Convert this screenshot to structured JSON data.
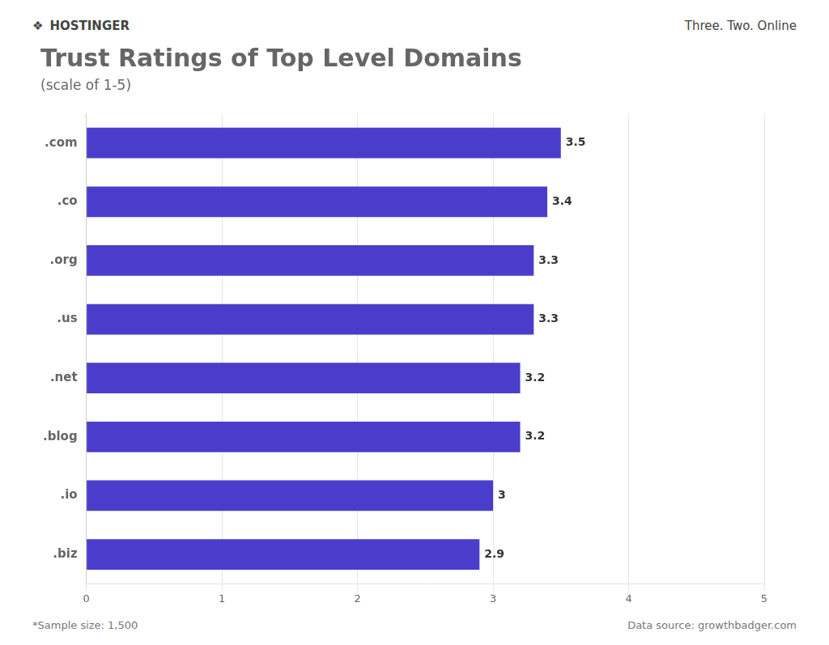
{
  "chart_data": {
    "type": "bar",
    "orientation": "horizontal",
    "title": "Trust Ratings of Top Level Domains",
    "subtitle": "(scale of 1-5)",
    "categories": [
      ".biz",
      ".io",
      ".blog",
      ".net",
      ".us",
      ".org",
      ".co",
      ".com"
    ],
    "values": [
      2.9,
      3.0,
      3.2,
      3.2,
      3.3,
      3.3,
      3.4,
      3.5
    ],
    "color": "#4b3dcc",
    "xlim": [
      0,
      5
    ],
    "xticks": [
      0,
      1,
      2,
      3,
      4,
      5
    ],
    "grid": true,
    "data_labels": true,
    "annotations": [
      "❖",
      "HOSTINGER",
      "Three. Two. Online",
      "*Sample size: 1,500",
      "Data source: growthbadger.com"
    ]
  }
}
